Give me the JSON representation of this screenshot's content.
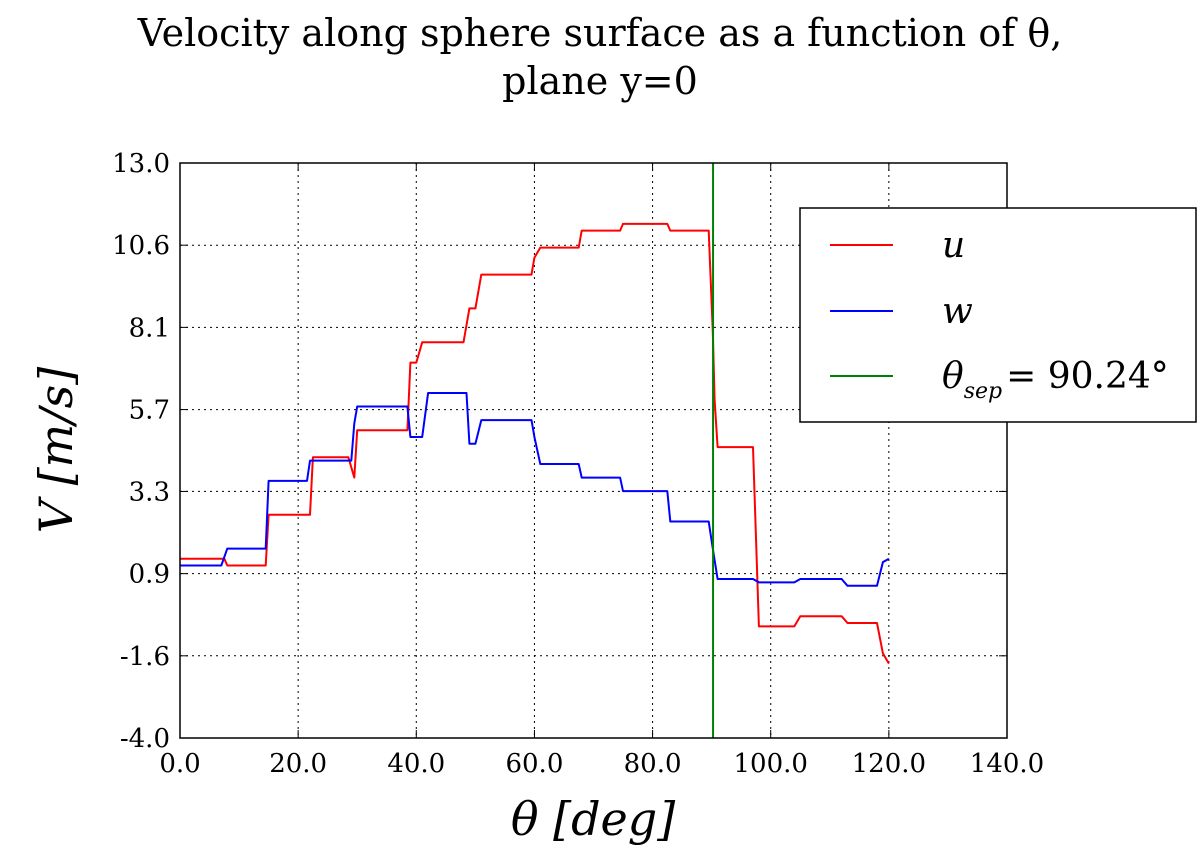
{
  "chart_data": {
    "type": "line",
    "title_line1": "Velocity along sphere surface as a function of θ,",
    "title_line2": "plane y=0",
    "xlabel": "θ [deg]",
    "ylabel": "V [m/s]",
    "xlim": [
      0,
      140
    ],
    "ylim": [
      -4.0,
      13.0
    ],
    "xticks": [
      "0.0",
      "20.0",
      "40.0",
      "60.0",
      "80.0",
      "100.0",
      "120.0",
      "140.0"
    ],
    "xtick_values": [
      0,
      20,
      40,
      60,
      80,
      100,
      120,
      140
    ],
    "yticks": [
      "-4.0",
      "-1.6",
      "0.9",
      "3.3",
      "5.7",
      "8.1",
      "10.6",
      "13.0"
    ],
    "ytick_values": [
      -4.0,
      -1.57,
      0.86,
      3.29,
      5.71,
      8.14,
      10.57,
      13.0
    ],
    "grid": true,
    "legend_position": "upper-right",
    "series": [
      {
        "name": "u",
        "color": "#ff0000",
        "x": [
          0,
          7.5,
          8,
          14.5,
          15,
          22,
          22.5,
          28.5,
          29,
          29.5,
          30,
          38.5,
          39,
          40,
          41,
          42,
          48,
          49,
          50,
          51,
          52,
          59.5,
          60,
          61,
          62,
          67.5,
          68,
          74.5,
          75,
          82.5,
          83,
          89.5,
          90.2,
          90.5,
          91,
          97,
          98,
          104,
          105,
          112,
          113,
          118,
          119,
          120
        ],
        "y": [
          1.3,
          1.3,
          1.1,
          1.1,
          2.6,
          2.6,
          4.3,
          4.3,
          4.0,
          3.7,
          5.1,
          5.1,
          7.1,
          7.1,
          7.7,
          7.7,
          7.7,
          8.7,
          8.7,
          9.7,
          9.7,
          9.7,
          10.2,
          10.5,
          10.5,
          10.5,
          11.0,
          11.0,
          11.2,
          11.2,
          11.0,
          11.0,
          8.0,
          6.0,
          4.6,
          4.6,
          -0.7,
          -0.7,
          -0.4,
          -0.4,
          -0.6,
          -0.6,
          -1.5,
          -1.8
        ]
      },
      {
        "name": "w",
        "color": "#0000ff",
        "x": [
          0,
          7,
          8,
          14.5,
          15,
          21.5,
          22,
          28.5,
          29,
          29.5,
          30,
          38.5,
          39,
          41,
          42,
          48.5,
          49,
          50,
          51,
          59.5,
          60,
          61,
          67.5,
          68,
          74.5,
          75,
          82.5,
          83,
          89.5,
          90.2,
          91,
          97,
          98,
          104,
          105,
          112,
          113,
          118,
          119,
          120
        ],
        "y": [
          1.1,
          1.1,
          1.6,
          1.6,
          3.6,
          3.6,
          4.2,
          4.2,
          4.2,
          5.3,
          5.8,
          5.8,
          4.9,
          4.9,
          6.2,
          6.2,
          4.7,
          4.7,
          5.4,
          5.4,
          4.9,
          4.1,
          4.1,
          3.7,
          3.7,
          3.3,
          3.3,
          2.4,
          2.4,
          1.6,
          0.7,
          0.7,
          0.6,
          0.6,
          0.7,
          0.7,
          0.5,
          0.5,
          1.2,
          1.3
        ]
      }
    ],
    "vline": {
      "x": 90.24,
      "color": "#008000",
      "legend_label": "θsep = 90.24°",
      "legend_main": "θ",
      "legend_sub": "sep",
      "legend_rest": "= 90.24°"
    },
    "legend_entries": [
      "u",
      "w",
      "θsep = 90.24°"
    ]
  }
}
